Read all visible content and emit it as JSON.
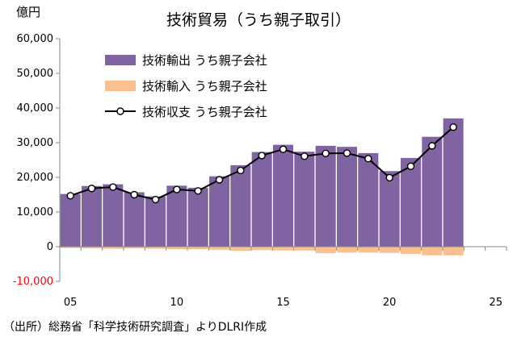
{
  "chart_data": {
    "type": "bar",
    "title": "技術貿易（うち親子取引）",
    "yunit": "億円",
    "source": "（出所）総務省「科学技術研究調査」よりDLRI作成",
    "x": [
      2005,
      2006,
      2007,
      2008,
      2009,
      2010,
      2011,
      2012,
      2013,
      2014,
      2015,
      2016,
      2017,
      2018,
      2019,
      2020,
      2021,
      2022,
      2023
    ],
    "xlim": [
      2004.5,
      2025.5
    ],
    "xticks": [
      {
        "label": "05",
        "value": 2005
      },
      {
        "label": "10",
        "value": 2010
      },
      {
        "label": "15",
        "value": 2015
      },
      {
        "label": "20",
        "value": 2020
      },
      {
        "label": "25",
        "value": 2025
      }
    ],
    "ylim": [
      -10000,
      60000
    ],
    "yticks": [
      {
        "label": "-10,000",
        "value": -10000,
        "negative": true
      },
      {
        "label": "0",
        "value": 0,
        "negative": false
      },
      {
        "label": "10,000",
        "value": 10000,
        "negative": false
      },
      {
        "label": "20,000",
        "value": 20000,
        "negative": false
      },
      {
        "label": "30,000",
        "value": 30000,
        "negative": false
      },
      {
        "label": "40,000",
        "value": 40000,
        "negative": false
      },
      {
        "label": "50,000",
        "value": 50000,
        "negative": false
      },
      {
        "label": "60,000",
        "value": 60000,
        "negative": false
      }
    ],
    "series": [
      {
        "name": "技術輸出 うち親子会社",
        "kind": "bar",
        "color": "#8064a2",
        "values": [
          15200,
          17500,
          18000,
          15700,
          14500,
          17600,
          17000,
          20300,
          23500,
          27300,
          29400,
          27400,
          29100,
          28800,
          27000,
          21800,
          25600,
          31700,
          37000
        ]
      },
      {
        "name": "技術輸入 うち親子会社",
        "kind": "bar",
        "color": "#fac090",
        "values": [
          -400,
          -500,
          -600,
          -500,
          -600,
          -700,
          -700,
          -900,
          -1200,
          -1000,
          -1100,
          -1100,
          -1900,
          -1700,
          -1700,
          -1800,
          -2100,
          -2500,
          -2500
        ]
      },
      {
        "name": "技術収支 うち親子会社",
        "kind": "line",
        "color": "#000000",
        "values": [
          14700,
          16800,
          17200,
          15000,
          13600,
          16500,
          16100,
          19300,
          22000,
          26300,
          28100,
          26100,
          26900,
          27000,
          25400,
          19900,
          23200,
          29100,
          34500
        ]
      }
    ],
    "grid": false,
    "legend_position": "top-left"
  }
}
